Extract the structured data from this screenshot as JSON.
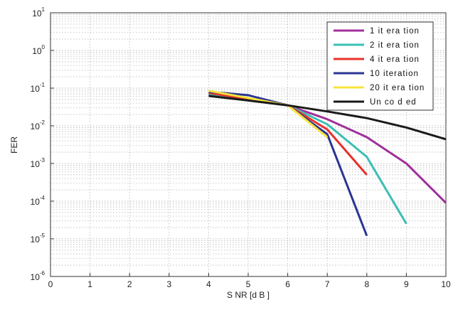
{
  "chart_data": {
    "type": "line",
    "title": "",
    "xlabel": "S NR  [d B ]",
    "ylabel": "FER",
    "xlim": [
      0,
      10
    ],
    "ylim_log10": [
      -6,
      1
    ],
    "y_scale": "log",
    "grid": true,
    "legend_position": "top-right",
    "x_ticks": [
      "0",
      "1",
      "2",
      "3",
      "4",
      "5",
      "6",
      "7",
      "8",
      "9",
      "10"
    ],
    "y_tick_base": "10",
    "y_tick_exponents": [
      "-6",
      "-5",
      "-4",
      "-3",
      "-2",
      "-1",
      "0",
      "1"
    ],
    "series": [
      {
        "name": "1  it era tion",
        "color": "#a0309b",
        "x": [
          4,
          6,
          7,
          8,
          9,
          10
        ],
        "y": [
          0.07,
          0.035,
          0.015,
          0.005,
          0.001,
          9e-05
        ]
      },
      {
        "name": "2  it era tion",
        "color": "#3bbfb5",
        "x": [
          4,
          6,
          7,
          8,
          9
        ],
        "y": [
          0.07,
          0.035,
          0.011,
          0.0015,
          2.5e-05
        ]
      },
      {
        "name": "4  it era tion",
        "color": "#e8302a",
        "x": [
          4,
          6,
          7,
          8
        ],
        "y": [
          0.075,
          0.035,
          0.008,
          0.0005
        ]
      },
      {
        "name": "10  iteration",
        "color": "#2b3591",
        "x": [
          4,
          5,
          6,
          7,
          8
        ],
        "y": [
          0.08,
          0.065,
          0.035,
          0.006,
          1.2e-05
        ]
      },
      {
        "name": "20  it era tion",
        "color": "#f7e43c",
        "x": [
          4,
          6,
          7
        ],
        "y": [
          0.085,
          0.035,
          0.005
        ]
      },
      {
        "name": "Un co d ed",
        "color": "#1a1a1a",
        "x": [
          4,
          5,
          6,
          7,
          8,
          9,
          10
        ],
        "y": [
          0.062,
          0.047,
          0.035,
          0.024,
          0.016,
          0.009,
          0.0044
        ]
      }
    ]
  }
}
